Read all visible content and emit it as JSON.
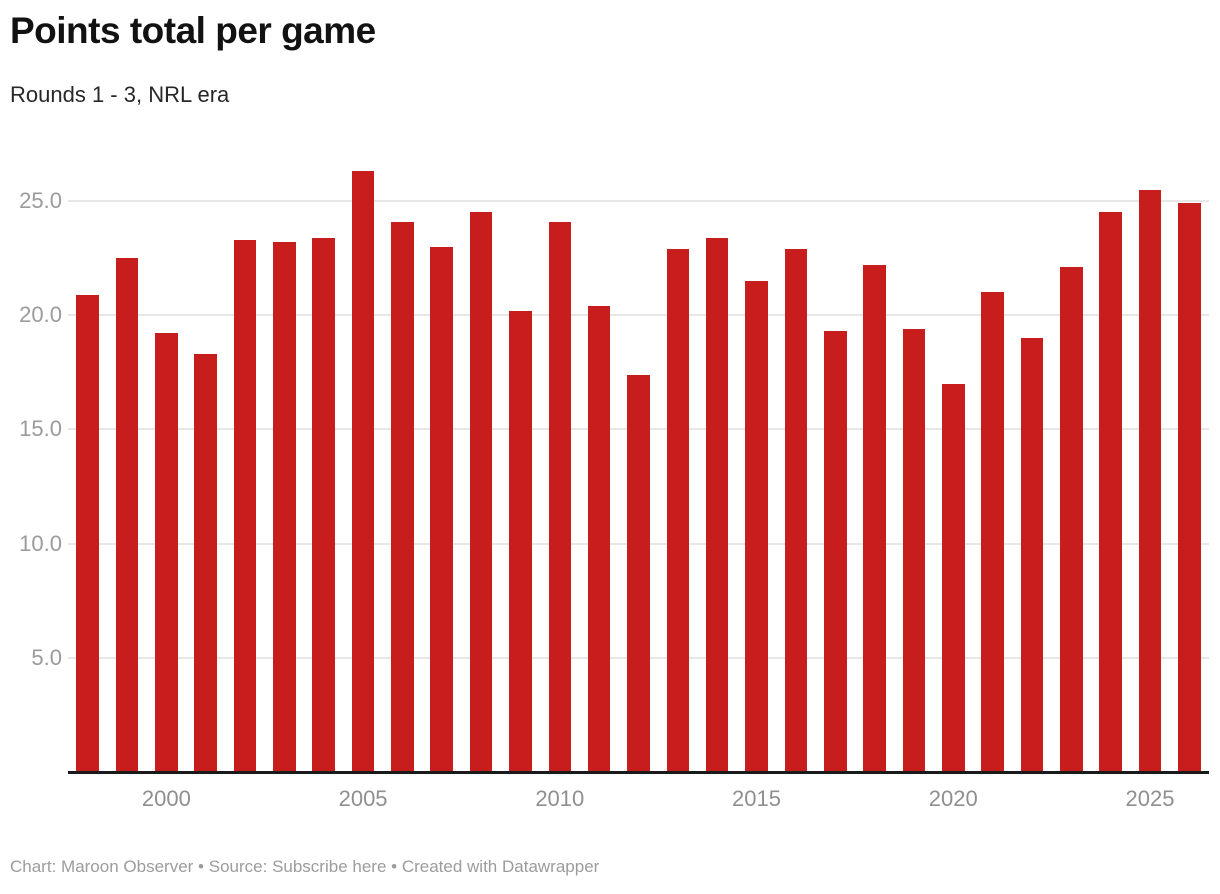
{
  "header": {
    "title": "Points total per game",
    "subtitle": "Rounds 1 - 3, NRL era"
  },
  "footer": {
    "chart_label": "Chart:",
    "chart_author": "Maroon Observer",
    "separator": "•",
    "source_label": "Source:",
    "source_link_text": "Subscribe here",
    "credit": "Created with Datawrapper"
  },
  "chart_data": {
    "type": "bar",
    "title": "Points total per game",
    "subtitle": "Rounds 1 - 3, NRL era",
    "categories": [
      1998,
      1999,
      2000,
      2001,
      2002,
      2003,
      2004,
      2005,
      2006,
      2007,
      2008,
      2009,
      2010,
      2011,
      2012,
      2013,
      2014,
      2015,
      2016,
      2017,
      2018,
      2019,
      2020,
      2021,
      2022,
      2023,
      2024,
      2025,
      2026
    ],
    "values": [
      20.9,
      22.5,
      19.2,
      18.3,
      23.3,
      23.2,
      23.4,
      26.3,
      24.1,
      23.0,
      24.5,
      20.2,
      24.1,
      20.4,
      17.4,
      22.9,
      23.4,
      21.5,
      22.9,
      19.3,
      22.2,
      19.4,
      17.0,
      21.0,
      19.0,
      22.1,
      24.5,
      25.5,
      24.9
    ],
    "xlabel": "",
    "ylabel": "",
    "ylim": [
      0,
      26.5
    ],
    "yticks": [
      5.0,
      10.0,
      15.0,
      20.0,
      25.0
    ],
    "xticks": [
      2000,
      2005,
      2010,
      2015,
      2020,
      2025
    ],
    "grid": true,
    "legend_position": "none",
    "bar_color": "#c71e1d"
  },
  "colors": {
    "bar": "#c71e1d",
    "gridline": "#e7e7e7",
    "baseline": "#1a1a1a",
    "y_tick_text": "#9b9b9b",
    "x_tick_text": "#8f8f8f",
    "title_text": "#121212",
    "subtitle_text": "#282828",
    "footer_text": "#9c9c9c"
  }
}
